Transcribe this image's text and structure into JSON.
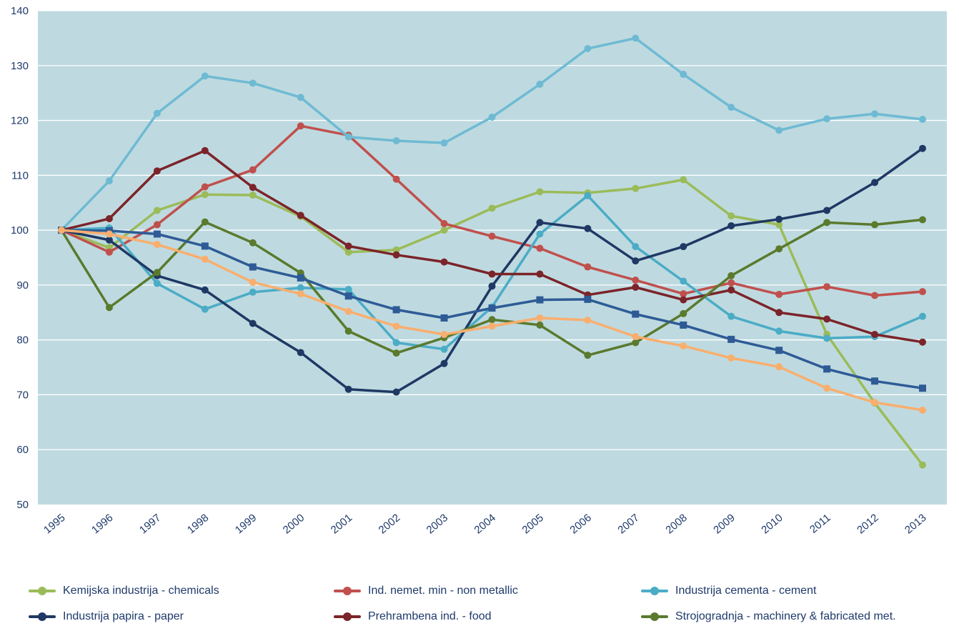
{
  "chart_data": {
    "type": "line",
    "title": "",
    "xlabel": "",
    "ylabel": "",
    "ylim": [
      50,
      140
    ],
    "yticks": [
      50,
      60,
      70,
      80,
      90,
      100,
      110,
      120,
      130,
      140
    ],
    "grid": true,
    "legend_position": "bottom",
    "background_color": "#bedae0",
    "categories": [
      "1995",
      "1996",
      "1997",
      "1998",
      "1999",
      "2000",
      "2001",
      "2002",
      "2003",
      "2004",
      "2005",
      "2006",
      "2007",
      "2008",
      "2009",
      "2010",
      "2011",
      "2012",
      "2013"
    ],
    "series": [
      {
        "name": "Kemijska industrija - chemicals",
        "color": "#9bbb59",
        "marker": "circle",
        "values": [
          100,
          96.8,
          103.6,
          106.5,
          106.4,
          102.5,
          96.0,
          96.4,
          100.0,
          104.0,
          107.0,
          106.8,
          107.6,
          109.2,
          102.6,
          101.0,
          81.0,
          68.5,
          57.2
        ]
      },
      {
        "name": "Ind. nemet. min - non metallic",
        "color": "#c0504d",
        "marker": "circle",
        "values": [
          100,
          96.0,
          101.0,
          107.9,
          111.0,
          119.0,
          117.3,
          109.3,
          101.2,
          98.9,
          96.7,
          93.3,
          90.9,
          88.4,
          90.4,
          88.3,
          89.7,
          88.1,
          88.8
        ]
      },
      {
        "name": "Industrija cementa - cement",
        "color": "#4bacc6",
        "marker": "circle",
        "values": [
          100,
          100.4,
          90.3,
          85.6,
          88.7,
          89.5,
          89.2,
          79.5,
          78.3,
          86.0,
          99.3,
          106.3,
          97.0,
          90.7,
          84.3,
          81.6,
          80.3,
          80.6,
          84.3
        ]
      },
      {
        "name": "",
        "color": "#6fbad3",
        "marker": "circle",
        "values": [
          100,
          109.0,
          121.3,
          128.1,
          126.8,
          124.2,
          117.0,
          116.3,
          115.9,
          120.6,
          126.6,
          133.1,
          135.0,
          128.4,
          122.4,
          118.2,
          120.3,
          121.2,
          120.2
        ]
      },
      {
        "name": "Industrija papira - paper",
        "color": "#1f3864",
        "marker": "circle",
        "values": [
          100,
          98.2,
          91.7,
          89.1,
          83.0,
          77.7,
          71.0,
          70.5,
          75.7,
          89.8,
          101.4,
          100.3,
          94.4,
          97.0,
          100.8,
          102.0,
          103.6,
          108.7,
          114.9
        ]
      },
      {
        "name": "Prehrambena ind. - food",
        "color": "#7b2429",
        "marker": "circle",
        "values": [
          100,
          102.1,
          110.8,
          114.5,
          107.8,
          102.7,
          97.1,
          95.5,
          94.2,
          92.0,
          92.0,
          88.2,
          89.6,
          87.3,
          89.1,
          85.0,
          83.8,
          81.0,
          79.6
        ]
      },
      {
        "name": "Strojogradnja - machinery & fabricated met.",
        "color": "#5a7a2e",
        "marker": "circle",
        "values": [
          100,
          85.9,
          92.3,
          101.5,
          97.7,
          92.2,
          81.6,
          77.6,
          80.4,
          83.7,
          82.7,
          77.2,
          79.5,
          84.8,
          91.7,
          96.6,
          101.4,
          101.0,
          101.9
        ]
      },
      {
        "name": "",
        "color": "#2e5b96",
        "marker": "square",
        "values": [
          100,
          99.9,
          99.3,
          97.1,
          93.3,
          91.3,
          88.0,
          85.5,
          84.0,
          85.8,
          87.3,
          87.4,
          84.7,
          82.7,
          80.1,
          78.1,
          74.7,
          72.5,
          71.2
        ]
      },
      {
        "name": "",
        "color": "#f9ae6e",
        "marker": "circle",
        "values": [
          100,
          99.3,
          97.4,
          94.7,
          90.5,
          88.4,
          85.2,
          82.5,
          81.0,
          82.5,
          84.0,
          83.6,
          80.6,
          78.9,
          76.7,
          75.1,
          71.2,
          68.6,
          67.2
        ]
      }
    ]
  },
  "legend": {
    "items": [
      {
        "label": "Kemijska industrija - chemicals",
        "color": "#9bbb59"
      },
      {
        "label": "Ind. nemet. min - non metallic",
        "color": "#c0504d"
      },
      {
        "label": "Industrija cementa - cement",
        "color": "#4bacc6"
      },
      {
        "label": "Industrija papira - paper",
        "color": "#1f3864"
      },
      {
        "label": "Prehrambena ind. - food",
        "color": "#7b2429"
      },
      {
        "label": "Strojogradnja - machinery & fabricated met.",
        "color": "#5a7a2e"
      }
    ]
  }
}
